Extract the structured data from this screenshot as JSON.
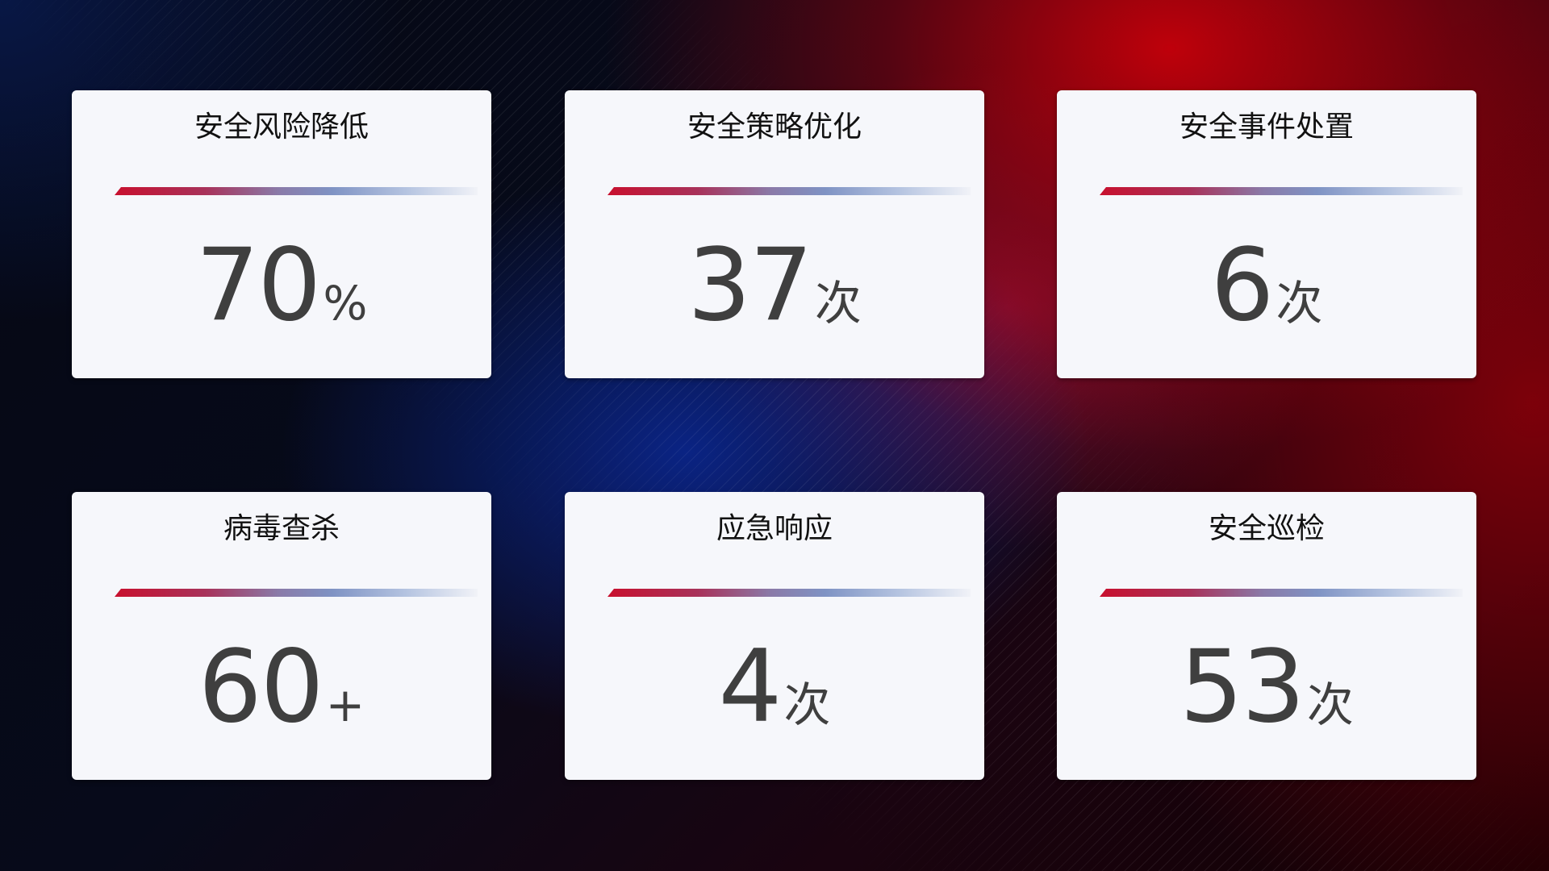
{
  "cards": [
    {
      "title": "安全风险降低",
      "value": "70",
      "unit": "%"
    },
    {
      "title": "安全策略优化",
      "value": "37",
      "unit": "次"
    },
    {
      "title": "安全事件处置",
      "value": "6",
      "unit": "次"
    },
    {
      "title": "病毒查杀",
      "value": "60",
      "unit": "+"
    },
    {
      "title": "应急响应",
      "value": "4",
      "unit": "次"
    },
    {
      "title": "安全巡检",
      "value": "53",
      "unit": "次"
    }
  ],
  "colors": {
    "bar_start": "#c8102e",
    "bar_end": "#b4c3e0",
    "card_bg": "#f6f7fb",
    "value_text": "#3f3f3f"
  }
}
